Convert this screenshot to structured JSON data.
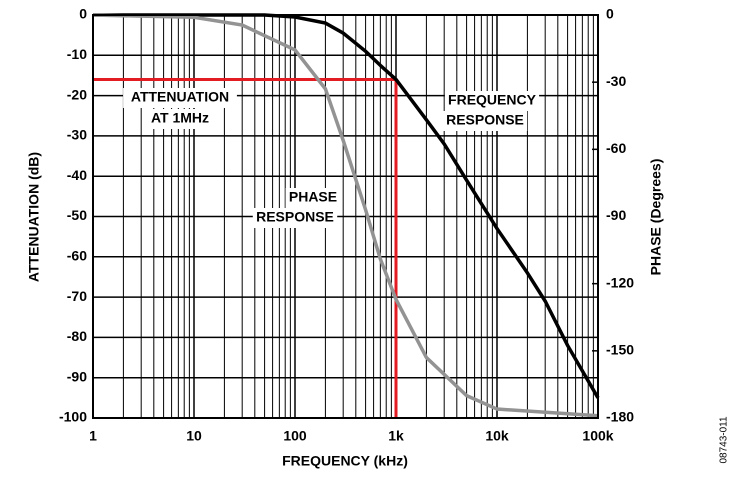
{
  "chart_data": {
    "type": "line",
    "xlabel": "FREQUENCY (kHz)",
    "ylabel": "ATTENUATION (dB)",
    "y2label": "PHASE (Degrees)",
    "xscale": "log",
    "grid": true,
    "xlim": [
      1,
      100000
    ],
    "xticks": [
      1,
      10,
      100,
      {
        "value": 1000,
        "label": "1k"
      },
      {
        "value": 10000,
        "label": "10k"
      },
      {
        "value": 100000,
        "label": "100k"
      }
    ],
    "xminorticks": [
      2,
      3,
      4,
      5,
      6,
      7,
      8,
      9,
      20,
      30,
      40,
      50,
      60,
      70,
      80,
      90,
      200,
      300,
      400,
      500,
      600,
      700,
      800,
      900,
      2000,
      3000,
      4000,
      5000,
      6000,
      7000,
      8000,
      9000,
      20000,
      30000,
      40000,
      50000,
      60000,
      70000,
      80000,
      90000
    ],
    "ylim": [
      -100,
      0
    ],
    "yticks": [
      0,
      -10,
      -20,
      -30,
      -40,
      -50,
      -60,
      -70,
      -80,
      -90,
      -100
    ],
    "y2lim": [
      -180,
      0
    ],
    "y2ticks": [
      0,
      -30,
      -60,
      -90,
      -120,
      -150,
      -180
    ],
    "series": [
      {
        "name": "FREQUENCY RESPONSE",
        "color": "#000000",
        "axis": "y",
        "x": [
          1,
          10,
          50,
          100,
          200,
          300,
          500,
          700,
          1000,
          2000,
          3000,
          5000,
          10000,
          20000,
          30000,
          50000,
          100000
        ],
        "values": [
          0,
          0,
          0,
          -0.5,
          -2,
          -4.5,
          -9,
          -12.5,
          -16,
          -26,
          -32,
          -41,
          -53,
          -64,
          -71,
          -82,
          -95
        ]
      },
      {
        "name": "PHASE RESPONSE",
        "color": "#939393",
        "axis": "y2",
        "x": [
          1,
          3,
          10,
          30,
          100,
          200,
          300,
          500,
          700,
          1000,
          2000,
          5000,
          10000,
          100000
        ],
        "values": [
          0,
          -0.5,
          -1,
          -4.5,
          -15.6,
          -33,
          -56,
          -87,
          -109,
          -127,
          -153,
          -170,
          -176,
          -179
        ]
      }
    ],
    "reference": {
      "x": 1000,
      "y": -16,
      "color": "#e31b23"
    },
    "annotations": [
      "ATTENUATION",
      "AT 1MHz",
      "FREQUENCY",
      "RESPONSE",
      "PHASE",
      "RESPONSE"
    ],
    "figure_id": "08743-011"
  }
}
